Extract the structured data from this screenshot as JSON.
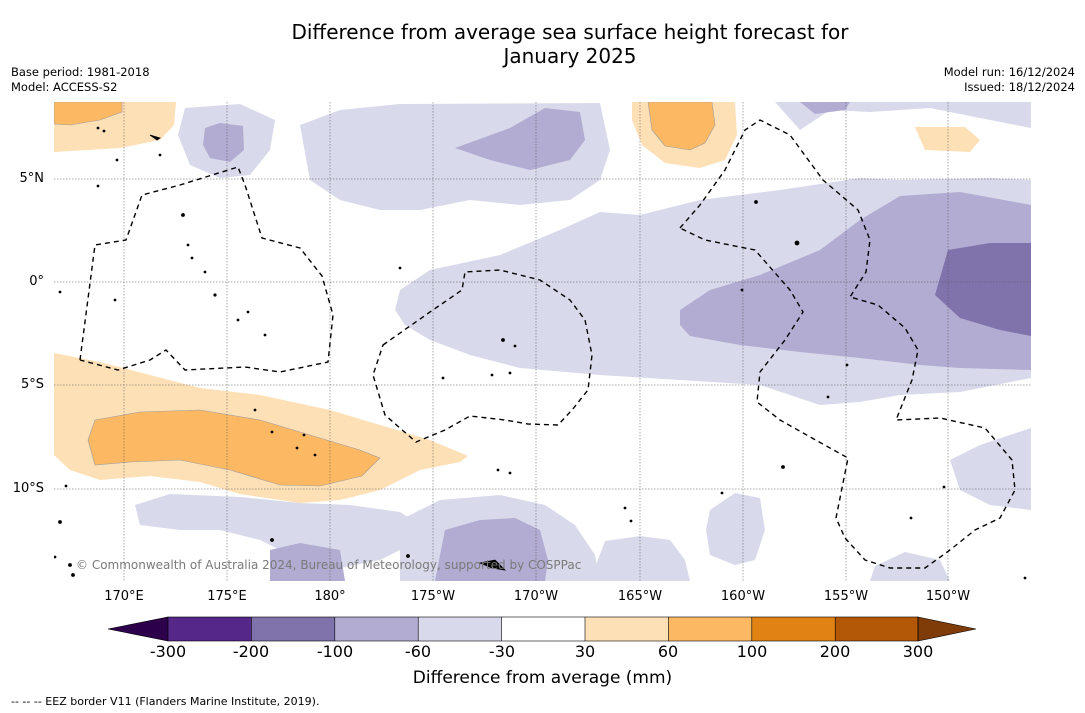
{
  "title_line1": "Difference from average sea surface height forecast for",
  "title_line2": "January 2025",
  "meta_left": {
    "base_period": "Base period: 1981-2018",
    "model": "Model: ACCESS-S2"
  },
  "meta_right": {
    "model_run": "Model run: 16/12/2024",
    "issued": "Issued: 18/12/2024"
  },
  "latitude_labels": [
    "5°N",
    "0°",
    "5°S",
    "10°S"
  ],
  "longitude_labels": [
    "170°E",
    "175°E",
    "180°",
    "175°W",
    "170°W",
    "165°W",
    "160°W",
    "155°W",
    "150°W"
  ],
  "copyright": "© Commonwealth of Australia 2024, Bureau of Meteorology, supported by COSPPac",
  "colorbar": {
    "ticks": [
      "-300",
      "-200",
      "-100",
      "-60",
      "-30",
      "30",
      "60",
      "100",
      "200",
      "300"
    ],
    "colors": [
      "#2d004b",
      "#542788",
      "#8073ac",
      "#b2abd2",
      "#d8daeb",
      "#ffffff",
      "#fee0b6",
      "#fdb863",
      "#e08214",
      "#b35806",
      "#7f3b08"
    ],
    "label": "Difference from average (mm)"
  },
  "footnote": "-- -- -- EEZ border V11 (Flanders Marine Institute, 2019)."
}
